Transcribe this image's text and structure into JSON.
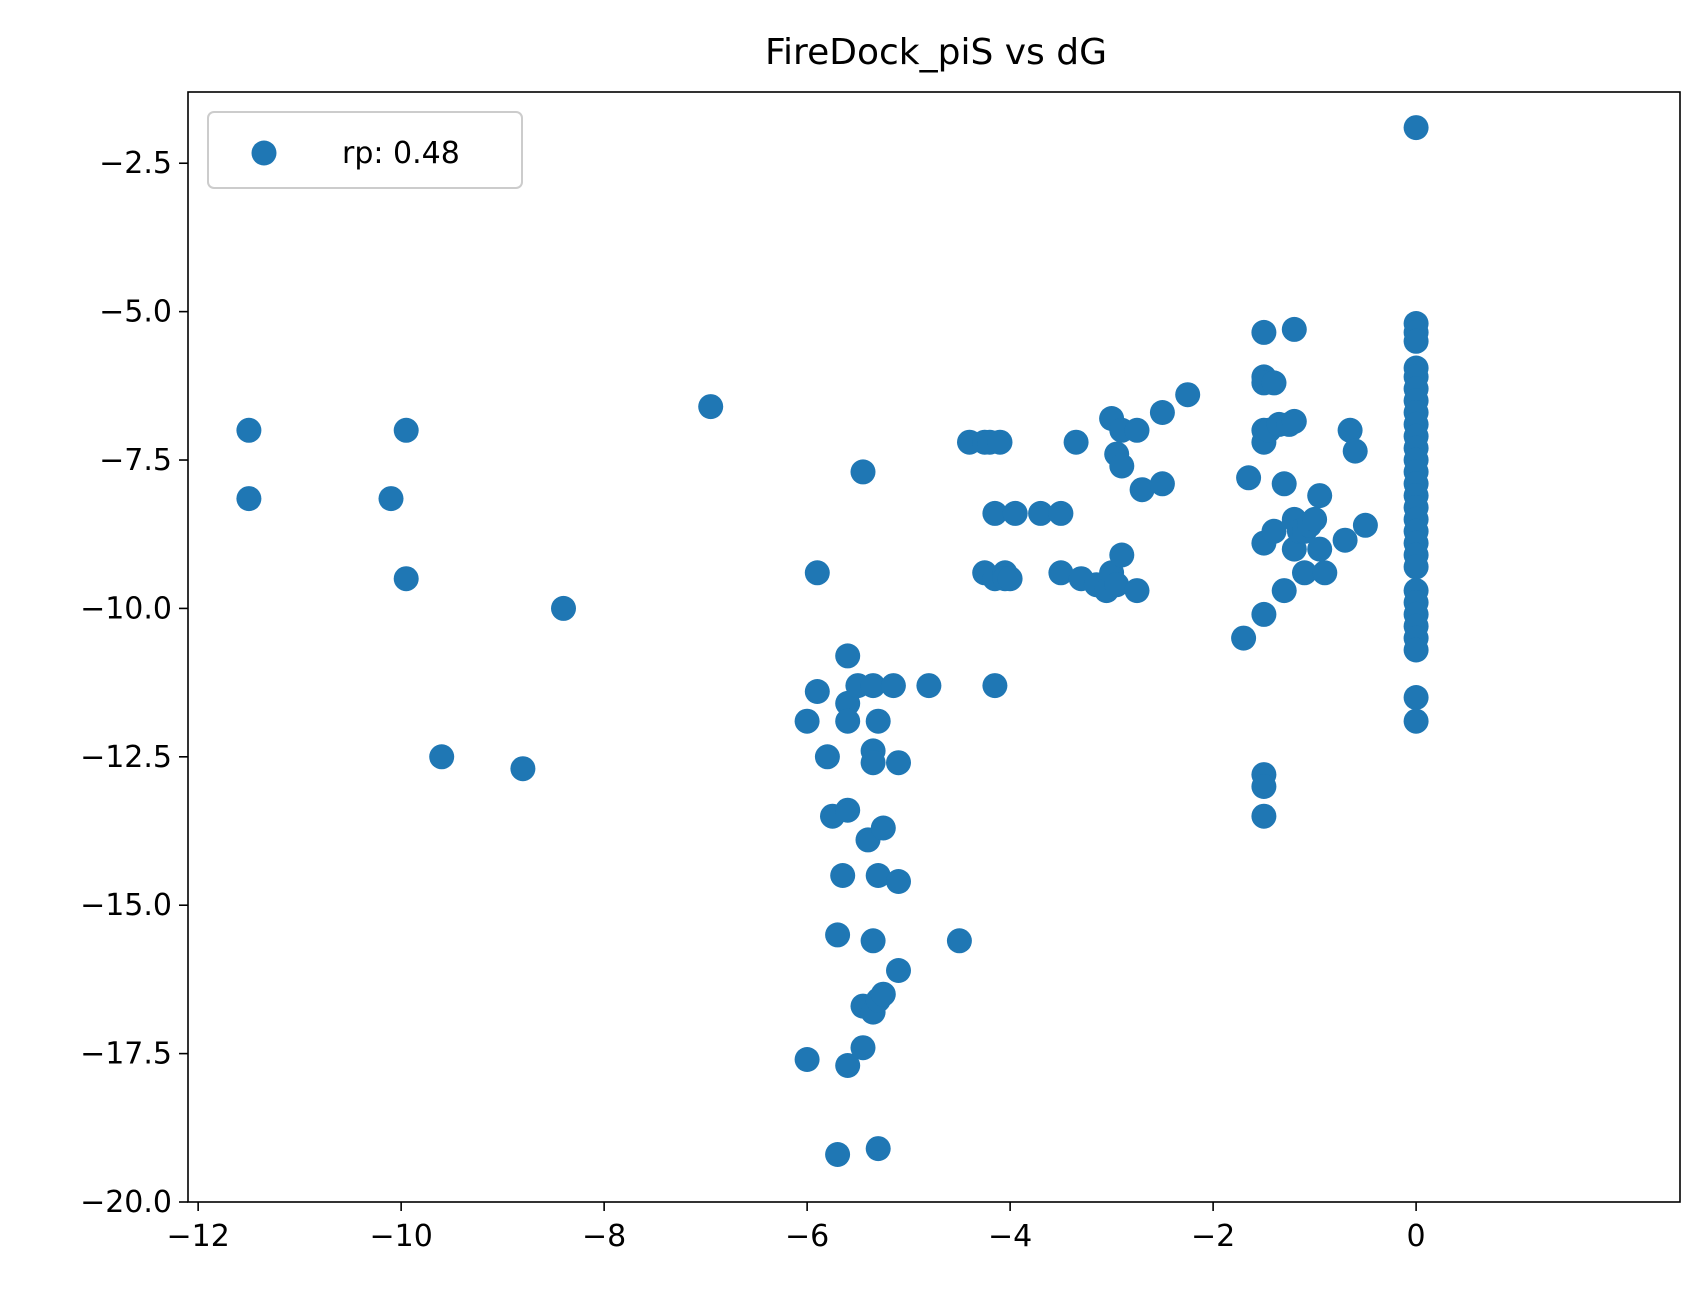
{
  "chart_data": {
    "type": "scatter",
    "title": "FireDock_piS vs dG",
    "xlabel": "",
    "ylabel": "",
    "xlim": [
      -12.1,
      2.6
    ],
    "ylim": [
      -20.0,
      -1.3
    ],
    "xticks": [
      -12,
      -10,
      -8,
      -6,
      -4,
      -2,
      0
    ],
    "xtick_labels": [
      "−12",
      "−10",
      "−8",
      "−6",
      "−4",
      "−2",
      "0"
    ],
    "yticks": [
      -20.0,
      -17.5,
      -15.0,
      -12.5,
      -10.0,
      -7.5,
      -5.0,
      -2.5
    ],
    "ytick_labels": [
      "−20.0",
      "−17.5",
      "−15.0",
      "−12.5",
      "−10.0",
      "−7.5",
      "−5.0",
      "−2.5"
    ],
    "grid": false,
    "legend_position": "top-left",
    "series": [
      {
        "name": "rp: 0.48",
        "color": "#1f77b4",
        "points": [
          [
            -11.5,
            -7.0
          ],
          [
            -11.5,
            -8.15
          ],
          [
            -10.1,
            -8.15
          ],
          [
            -9.95,
            -7.0
          ],
          [
            -9.95,
            -9.5
          ],
          [
            -9.6,
            -12.5
          ],
          [
            -8.8,
            -12.7
          ],
          [
            -8.4,
            -10.0
          ],
          [
            -6.95,
            -6.6
          ],
          [
            -6.0,
            -11.9
          ],
          [
            -6.0,
            -17.6
          ],
          [
            -5.9,
            -9.4
          ],
          [
            -5.9,
            -11.4
          ],
          [
            -5.8,
            -12.5
          ],
          [
            -5.75,
            -13.5
          ],
          [
            -5.7,
            -15.5
          ],
          [
            -5.7,
            -19.2
          ],
          [
            -5.65,
            -14.5
          ],
          [
            -5.6,
            -10.8
          ],
          [
            -5.6,
            -11.6
          ],
          [
            -5.6,
            -11.9
          ],
          [
            -5.6,
            -13.4
          ],
          [
            -5.6,
            -17.7
          ],
          [
            -5.5,
            -11.3
          ],
          [
            -5.45,
            -7.7
          ],
          [
            -5.45,
            -16.7
          ],
          [
            -5.45,
            -17.4
          ],
          [
            -5.4,
            -13.9
          ],
          [
            -5.35,
            -11.3
          ],
          [
            -5.35,
            -12.4
          ],
          [
            -5.35,
            -12.6
          ],
          [
            -5.35,
            -15.6
          ],
          [
            -5.35,
            -16.8
          ],
          [
            -5.3,
            -11.9
          ],
          [
            -5.3,
            -14.5
          ],
          [
            -5.3,
            -16.6
          ],
          [
            -5.3,
            -19.1
          ],
          [
            -5.25,
            -13.7
          ],
          [
            -5.25,
            -16.5
          ],
          [
            -5.15,
            -11.3
          ],
          [
            -5.1,
            -12.6
          ],
          [
            -5.1,
            -14.6
          ],
          [
            -5.1,
            -16.1
          ],
          [
            -4.8,
            -11.3
          ],
          [
            -4.5,
            -15.6
          ],
          [
            -4.4,
            -7.2
          ],
          [
            -4.25,
            -7.2
          ],
          [
            -4.25,
            -9.4
          ],
          [
            -4.2,
            -7.2
          ],
          [
            -4.15,
            -8.4
          ],
          [
            -4.15,
            -9.5
          ],
          [
            -4.15,
            -11.3
          ],
          [
            -4.1,
            -7.2
          ],
          [
            -4.05,
            -9.4
          ],
          [
            -4.05,
            -9.5
          ],
          [
            -4.0,
            -9.5
          ],
          [
            -3.95,
            -8.4
          ],
          [
            -3.7,
            -8.4
          ],
          [
            -3.5,
            -8.4
          ],
          [
            -3.5,
            -9.4
          ],
          [
            -3.35,
            -7.2
          ],
          [
            -3.3,
            -9.5
          ],
          [
            -3.15,
            -9.6
          ],
          [
            -3.05,
            -9.7
          ],
          [
            -3.0,
            -6.8
          ],
          [
            -3.0,
            -9.4
          ],
          [
            -2.95,
            -7.4
          ],
          [
            -2.95,
            -9.6
          ],
          [
            -2.9,
            -7.0
          ],
          [
            -2.9,
            -7.6
          ],
          [
            -2.9,
            -9.1
          ],
          [
            -2.75,
            -7.0
          ],
          [
            -2.75,
            -9.7
          ],
          [
            -2.7,
            -8.0
          ],
          [
            -2.5,
            -6.7
          ],
          [
            -2.5,
            -7.9
          ],
          [
            -2.25,
            -6.4
          ],
          [
            -1.7,
            -10.5
          ],
          [
            -1.65,
            -7.8
          ],
          [
            -1.5,
            -5.35
          ],
          [
            -1.5,
            -6.1
          ],
          [
            -1.5,
            -6.2
          ],
          [
            -1.5,
            -7.0
          ],
          [
            -1.5,
            -7.2
          ],
          [
            -1.5,
            -8.9
          ],
          [
            -1.5,
            -10.1
          ],
          [
            -1.5,
            -12.8
          ],
          [
            -1.5,
            -13.0
          ],
          [
            -1.5,
            -13.5
          ],
          [
            -1.45,
            -7.0
          ],
          [
            -1.4,
            -6.2
          ],
          [
            -1.4,
            -8.7
          ],
          [
            -1.35,
            -6.9
          ],
          [
            -1.3,
            -7.9
          ],
          [
            -1.3,
            -9.7
          ],
          [
            -1.25,
            -6.9
          ],
          [
            -1.2,
            -5.3
          ],
          [
            -1.2,
            -6.85
          ],
          [
            -1.2,
            -8.5
          ],
          [
            -1.2,
            -9.0
          ],
          [
            -1.15,
            -8.7
          ],
          [
            -1.1,
            -8.7
          ],
          [
            -1.1,
            -9.4
          ],
          [
            -1.05,
            -8.6
          ],
          [
            -1.0,
            -8.5
          ],
          [
            -0.95,
            -8.1
          ],
          [
            -0.95,
            -9.0
          ],
          [
            -0.9,
            -9.4
          ],
          [
            -0.7,
            -8.85
          ],
          [
            -0.65,
            -7.0
          ],
          [
            -0.6,
            -7.35
          ],
          [
            -0.5,
            -8.6
          ],
          [
            0,
            -1.9
          ],
          [
            0,
            -5.2
          ],
          [
            0,
            -5.35
          ],
          [
            0,
            -5.5
          ],
          [
            0,
            -5.95
          ],
          [
            0,
            -6.1
          ],
          [
            0,
            -6.3
          ],
          [
            0,
            -6.5
          ],
          [
            0,
            -6.7
          ],
          [
            0,
            -6.9
          ],
          [
            0,
            -7.1
          ],
          [
            0,
            -7.3
          ],
          [
            0,
            -7.5
          ],
          [
            0,
            -7.7
          ],
          [
            0,
            -7.9
          ],
          [
            0,
            -8.1
          ],
          [
            0,
            -8.3
          ],
          [
            0,
            -8.5
          ],
          [
            0,
            -8.7
          ],
          [
            0,
            -8.9
          ],
          [
            0,
            -9.1
          ],
          [
            0,
            -9.3
          ],
          [
            0,
            -9.7
          ],
          [
            0,
            -9.9
          ],
          [
            0,
            -10.1
          ],
          [
            0,
            -10.3
          ],
          [
            0,
            -10.5
          ],
          [
            0,
            -10.7
          ],
          [
            0,
            -11.5
          ],
          [
            0,
            -11.9
          ]
        ]
      }
    ]
  }
}
